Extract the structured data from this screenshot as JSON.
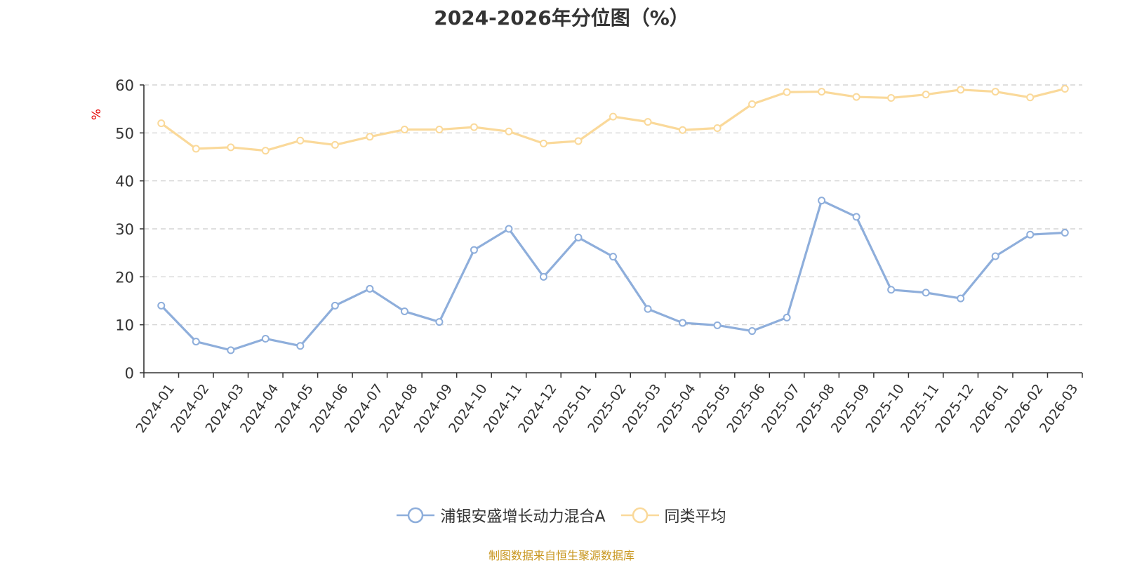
{
  "chart_data": {
    "type": "line",
    "title": "2024-2026年分位图（%）",
    "ylabel": "%",
    "xlabel": "",
    "ylim": [
      0,
      60
    ],
    "yticks": [
      0,
      10,
      20,
      30,
      40,
      50,
      60
    ],
    "grid": true,
    "categories": [
      "2024-01",
      "2024-02",
      "2024-03",
      "2024-04",
      "2024-05",
      "2024-06",
      "2024-07",
      "2024-08",
      "2024-09",
      "2024-10",
      "2024-11",
      "2024-12",
      "2025-01",
      "2025-02",
      "2025-03",
      "2025-04",
      "2025-05",
      "2025-06",
      "2025-07",
      "2025-08",
      "2025-09",
      "2025-10",
      "2025-11",
      "2025-12",
      "2026-01",
      "2026-02",
      "2026-03"
    ],
    "series": [
      {
        "name": "浦银安盛增长动力混合A",
        "color": "#8eaedb",
        "values": [
          14.0,
          6.5,
          4.7,
          7.1,
          5.6,
          14.0,
          17.5,
          12.8,
          10.6,
          25.6,
          30.0,
          20.0,
          28.2,
          24.2,
          13.3,
          10.4,
          9.9,
          8.7,
          11.5,
          35.9,
          32.5,
          17.3,
          16.7,
          15.5,
          24.3,
          28.8,
          29.2
        ]
      },
      {
        "name": "同类平均",
        "color": "#fad99a",
        "values": [
          52.0,
          46.7,
          47.0,
          46.3,
          48.4,
          47.5,
          49.2,
          50.7,
          50.7,
          51.2,
          50.3,
          47.8,
          48.3,
          53.4,
          52.3,
          50.6,
          51.0,
          56.0,
          58.5,
          58.6,
          57.5,
          57.3,
          58.0,
          59.0,
          58.6,
          57.4,
          59.2
        ]
      }
    ],
    "legend_position": "bottom-center",
    "source_text": "制图数据来自恒生聚源数据库",
    "source_color": "#c8961e",
    "ylabel_color": "#e60000",
    "axis_color": "#333333",
    "grid_color": "#cccccc"
  }
}
